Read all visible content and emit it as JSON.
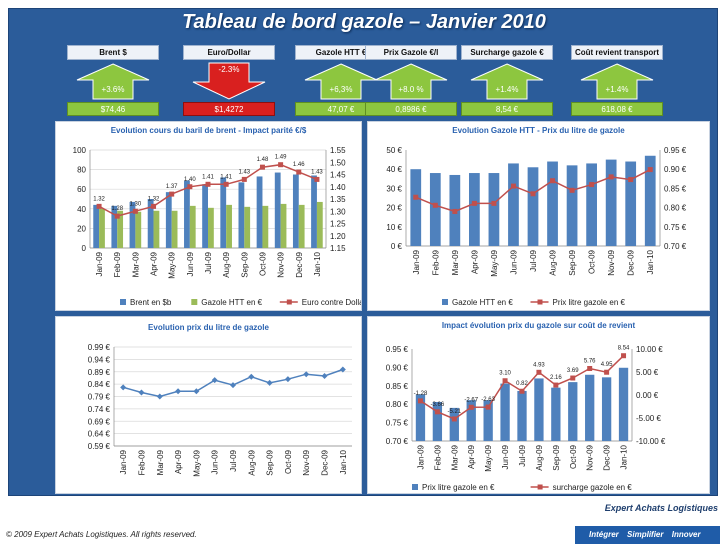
{
  "title": "Tableau de bord gazole – Janvier 2010",
  "kpis": [
    {
      "label": "Brent $",
      "change": "+3.6%",
      "value": "$74,46",
      "trend": "up",
      "status": "green"
    },
    {
      "label": "Euro/Dollar",
      "change": "-2.3%",
      "value": "$1,4272",
      "trend": "down",
      "status": "red"
    },
    {
      "label": "Gazole HTT €",
      "change": "+6,3%",
      "value": "47,07 €",
      "trend": "up",
      "status": "green"
    },
    {
      "label": "Prix Gazole €/l",
      "change": "+8.0 %",
      "value": "0,8986 €",
      "trend": "up",
      "status": "green"
    },
    {
      "label": "Surcharge gazole €",
      "change": "+1.4%",
      "value": "8,54 €",
      "trend": "up",
      "status": "green"
    },
    {
      "label": "Coût revient transport",
      "change": "+1.4%",
      "value": "618,08 €",
      "trend": "up",
      "status": "green"
    }
  ],
  "colors": {
    "frame": "#2b5c9a",
    "bar_blue": "#4f81bd",
    "bar_green": "#9bbb59",
    "line_red": "#c0504d",
    "line_blue": "#4f81bd",
    "kpi_green": "#8dc63f",
    "kpi_red": "#d9201f"
  },
  "chart_data": [
    {
      "id": "brent",
      "type": "bar",
      "title": "Evolution cours du baril de brent - Impact parité €/$",
      "categories": [
        "Jan-09",
        "Feb-09",
        "Mar-09",
        "Apr-09",
        "May-09",
        "Jun-09",
        "Jul-09",
        "Aug-09",
        "Sep-09",
        "Oct-09",
        "Nov-09",
        "Dec-09",
        "Jan-10"
      ],
      "series": [
        {
          "name": "Brent en $b",
          "type": "bar",
          "axis": "left",
          "values": [
            44,
            43,
            47,
            50,
            57,
            69,
            65,
            72,
            67,
            73,
            77,
            75,
            74
          ]
        },
        {
          "name": "Gazole HTT en €",
          "type": "bar",
          "axis": "left",
          "values": [
            40,
            38,
            37,
            38,
            38,
            43,
            41,
            44,
            42,
            43,
            45,
            44,
            47
          ]
        },
        {
          "name": "Euro contre Dollar",
          "type": "line",
          "axis": "right",
          "values": [
            1.32,
            1.28,
            1.3,
            1.32,
            1.37,
            1.4,
            1.41,
            1.41,
            1.43,
            1.48,
            1.49,
            1.46,
            1.43
          ],
          "labels": [
            "1.32",
            "1.28",
            "1.30",
            "1.32",
            "1.37",
            "1.40",
            "1.41",
            "1.41",
            "1.43",
            "1.48",
            "1.49",
            "1.46",
            "1.43"
          ]
        }
      ],
      "y_left": {
        "min": 0,
        "max": 100,
        "ticks": [
          0,
          20,
          40,
          60,
          80,
          100
        ]
      },
      "y_right": {
        "min": 1.15,
        "max": 1.55,
        "ticks": [
          "1.15",
          "1.20",
          "1.25",
          "1.30",
          "1.35",
          "1.40",
          "1.45",
          "1.50",
          "1.55"
        ]
      },
      "legend": "bottom"
    },
    {
      "id": "gazole",
      "type": "bar",
      "title": "Evolution Gazole HTT - Prix du litre de  gazole",
      "categories": [
        "Jan-09",
        "Feb-09",
        "Mar-09",
        "Apr-09",
        "May-09",
        "Jun-09",
        "Jul-09",
        "Aug-09",
        "Sep-09",
        "Oct-09",
        "Nov-09",
        "Dec-09",
        "Jan-10"
      ],
      "series": [
        {
          "name": "Gazole HTT en €",
          "type": "bar",
          "axis": "left",
          "values": [
            40,
            38,
            37,
            38,
            38,
            43,
            41,
            44,
            42,
            43,
            45,
            44,
            47
          ]
        },
        {
          "name": "Prix litre gazole en €",
          "type": "line",
          "axis": "right",
          "values": [
            0.827,
            0.806,
            0.79,
            0.811,
            0.811,
            0.856,
            0.836,
            0.87,
            0.845,
            0.86,
            0.88,
            0.873,
            0.899
          ]
        }
      ],
      "y_left": {
        "min": 0,
        "max": 50,
        "ticks": [
          "0 €",
          "10 €",
          "20 €",
          "30 €",
          "40 €",
          "50 €"
        ]
      },
      "y_right": {
        "min": 0.7,
        "max": 0.95,
        "ticks": [
          "0.70 €",
          "0.75 €",
          "0.80 €",
          "0.85 €",
          "0.90 €",
          "0.95 €"
        ]
      },
      "legend": "bottom"
    },
    {
      "id": "prix",
      "type": "line",
      "title": "Evolution prix du litre de gazole",
      "categories": [
        "Jan-09",
        "Feb-09",
        "Mar-09",
        "Apr-09",
        "May-09",
        "Jun-09",
        "Jul-09",
        "Aug-09",
        "Sep-09",
        "Oct-09",
        "Nov-09",
        "Dec-09",
        "Jan-10"
      ],
      "series": [
        {
          "name": "Prix du litre de gazole",
          "type": "line",
          "values": [
            0.827,
            0.806,
            0.79,
            0.811,
            0.811,
            0.856,
            0.836,
            0.87,
            0.845,
            0.86,
            0.88,
            0.873,
            0.899
          ]
        }
      ],
      "y": {
        "min": 0.59,
        "max": 0.99,
        "ticks": [
          "0.59 €",
          "0.64 €",
          "0.69 €",
          "0.74 €",
          "0.79 €",
          "0.84 €",
          "0.89 €",
          "0.94 €",
          "0.99 €"
        ]
      },
      "legend": "none"
    },
    {
      "id": "impact",
      "type": "bar",
      "title": "Impact  évolution prix du gazole sur coût de revient",
      "categories": [
        "Jan-09",
        "Feb-09",
        "Mar-09",
        "Apr-09",
        "May-09",
        "Jun-09",
        "Jul-09",
        "Aug-09",
        "Sep-09",
        "Oct-09",
        "Nov-09",
        "Dec-09",
        "Jan-10"
      ],
      "series": [
        {
          "name": "Prix litre gazole en €",
          "type": "bar",
          "axis": "left",
          "values": [
            0.827,
            0.806,
            0.79,
            0.811,
            0.811,
            0.856,
            0.836,
            0.87,
            0.845,
            0.86,
            0.88,
            0.873,
            0.899
          ]
        },
        {
          "name": "surcharge gazole en €",
          "type": "line",
          "axis": "right",
          "values": [
            -1.28,
            -3.66,
            -5.21,
            -2.67,
            -2.63,
            3.1,
            0.82,
            4.93,
            2.16,
            3.69,
            5.76,
            4.95,
            8.54
          ],
          "labels": [
            "-1.28",
            "-3.66",
            "-5.21",
            "-2.67",
            "-2.63",
            "3.10",
            "0.82",
            "4.93",
            "2.16",
            "3.69",
            "5.76",
            "4.95",
            "8.54"
          ]
        }
      ],
      "y_left": {
        "min": 0.7,
        "max": 0.95,
        "ticks": [
          "0.70 €",
          "0.75 €",
          "0.80 €",
          "0.85 €",
          "0.90 €",
          "0.95 €"
        ]
      },
      "y_right": {
        "min": -10,
        "max": 10,
        "ticks": [
          "-10.00 €",
          "-5.00 €",
          "0.00 €",
          "5.00 €",
          "10.00 €"
        ]
      },
      "legend": "bottom"
    }
  ],
  "footer": {
    "brand": "Expert Achats Logistiques",
    "copyright": "© 2009 Expert Achats Logistiques. All rights reserved.",
    "tagline": [
      "Intégrer",
      "Simplifier",
      "Innover"
    ]
  }
}
